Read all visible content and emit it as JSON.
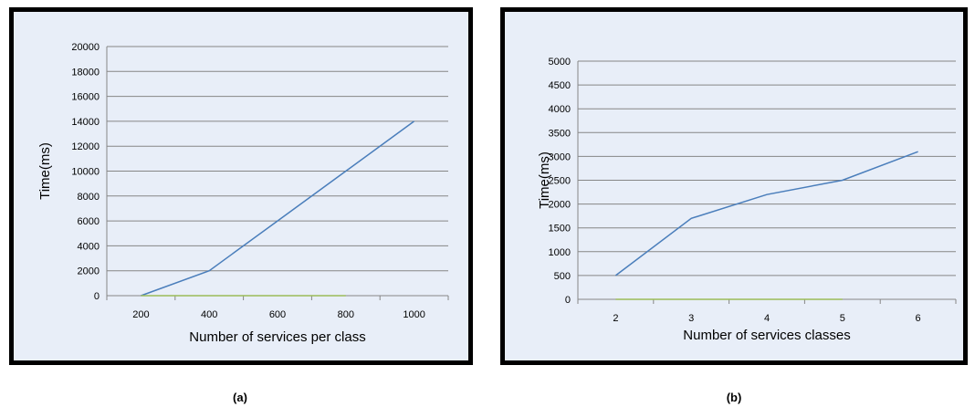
{
  "chart_data": [
    {
      "type": "line",
      "title": "",
      "xlabel": "Number of services per class",
      "ylabel": "Time(ms)",
      "categories": [
        "200",
        "400",
        "600",
        "800",
        "1000"
      ],
      "ylim": [
        0,
        20000
      ],
      "yticks": [
        0,
        2000,
        4000,
        6000,
        8000,
        10000,
        12000,
        14000,
        16000,
        18000,
        20000
      ],
      "grid": true,
      "legend": "none",
      "series": [
        {
          "color": "#4a7ebb",
          "values": [
            0,
            2000,
            6000,
            10000,
            14000
          ]
        },
        {
          "color": "#9bbb59",
          "values": [
            0,
            0,
            0,
            0,
            null
          ]
        }
      ]
    },
    {
      "type": "line",
      "title": "",
      "xlabel": "Number of services classes",
      "ylabel": "Time(ms)",
      "categories": [
        "2",
        "3",
        "4",
        "5",
        "6"
      ],
      "ylim": [
        0,
        5000
      ],
      "yticks": [
        0,
        500,
        1000,
        1500,
        2000,
        2500,
        3000,
        3500,
        4000,
        4500,
        5000
      ],
      "grid": true,
      "legend": "none",
      "series": [
        {
          "color": "#4a7ebb",
          "values": [
            500,
            1700,
            2200,
            2500,
            3100
          ]
        },
        {
          "color": "#9bbb59",
          "values": [
            0,
            0,
            0,
            0,
            null
          ]
        }
      ]
    }
  ],
  "captions": [
    "(a)",
    "(b)"
  ]
}
